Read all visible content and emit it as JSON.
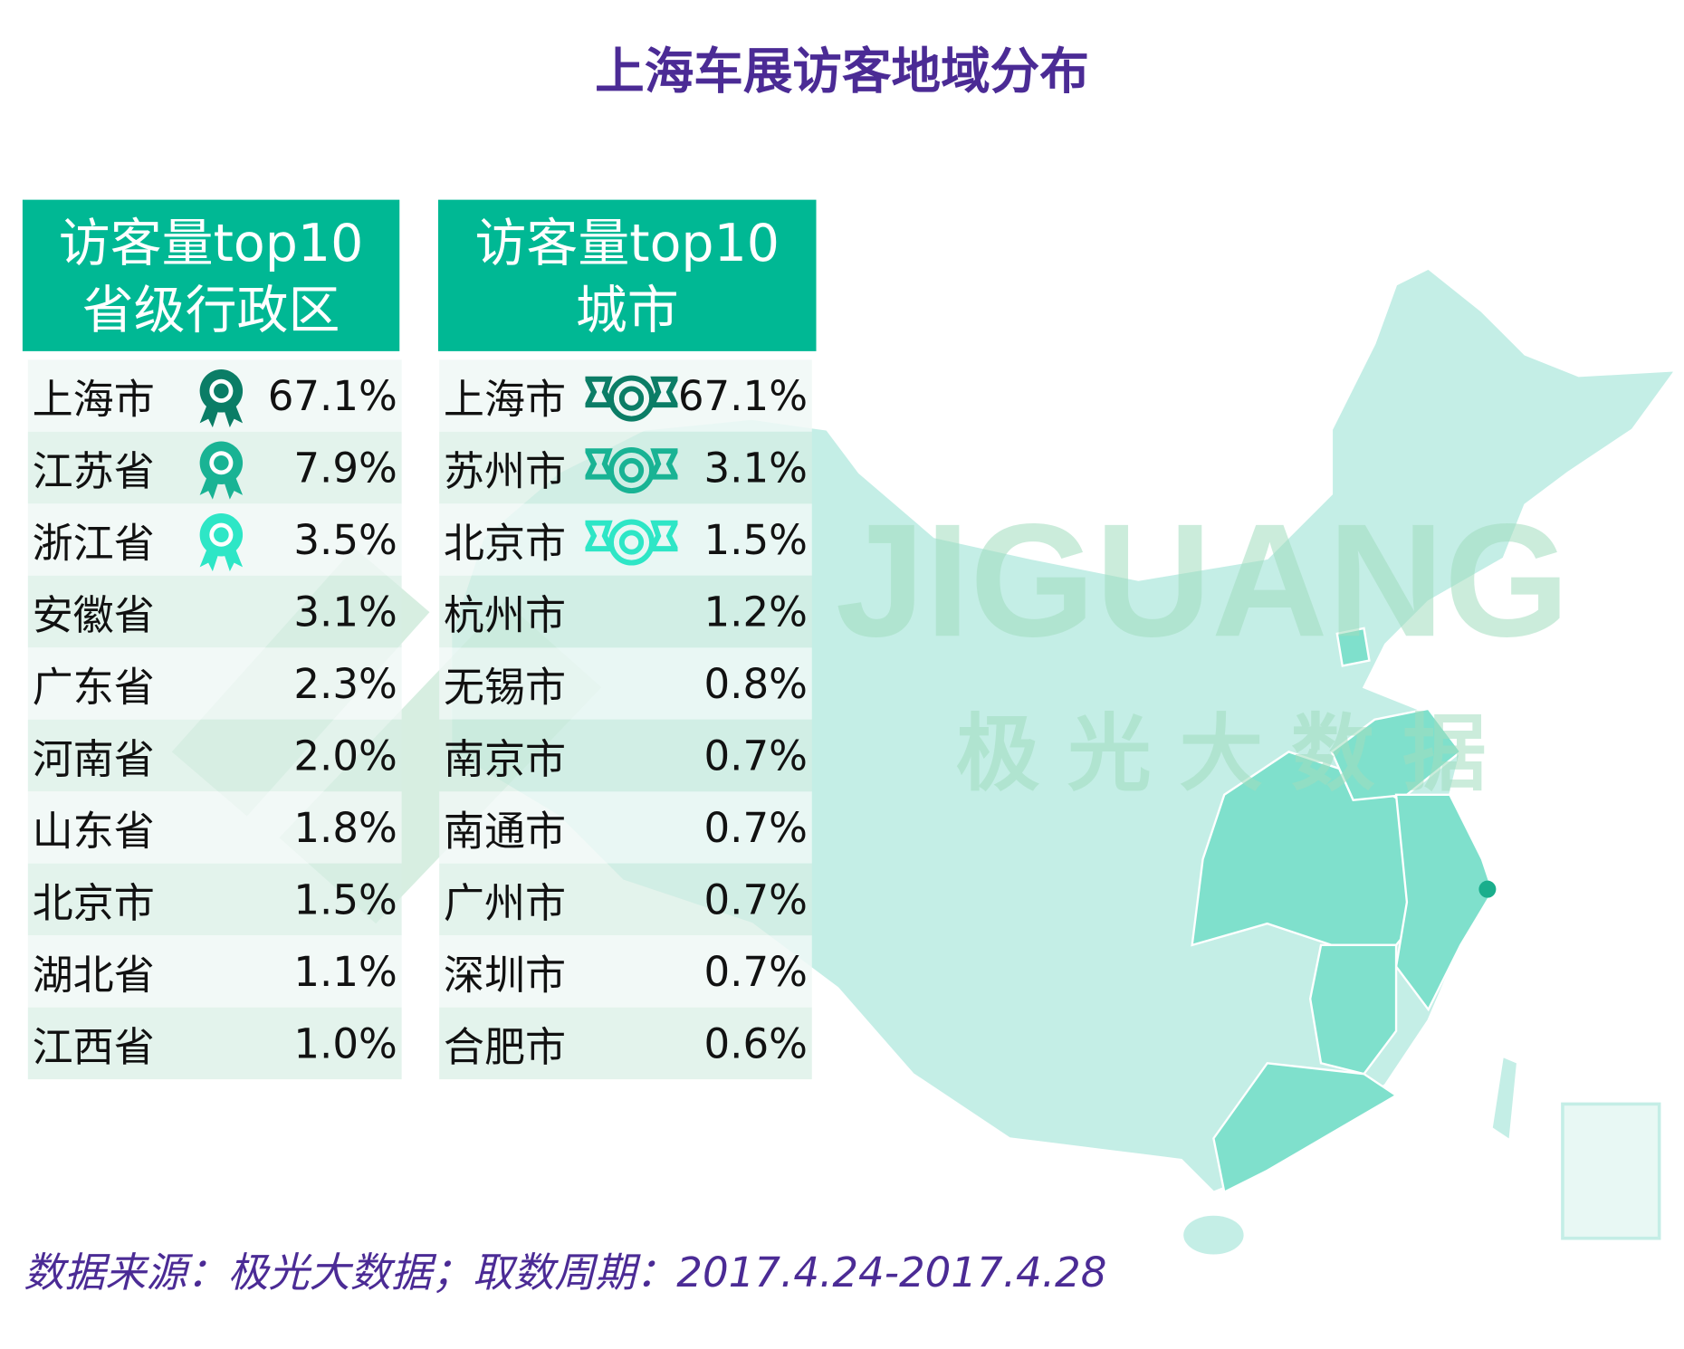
{
  "title": "上海车展访客地域分布",
  "watermark": {
    "latin": "JIGUANG",
    "chinese": "极光大数据"
  },
  "colors": {
    "accent": "#00b894",
    "title": "#4b2b95",
    "rank1": "#0b7d66",
    "rank2": "#19b394",
    "rank3": "#2ee6c6",
    "map_base": "#c4eee6",
    "map_highlight": "#7fe0cc"
  },
  "chart_data": [
    {
      "type": "table",
      "title": "访客量top10 省级行政区",
      "header_line1": "访客量top10",
      "header_line2": "省级行政区",
      "rows": [
        {
          "name": "上海市",
          "value": "67.1%",
          "icon": "medal-icon"
        },
        {
          "name": "江苏省",
          "value": "7.9%",
          "icon": "medal-icon"
        },
        {
          "name": "浙江省",
          "value": "3.5%",
          "icon": "medal-icon"
        },
        {
          "name": "安徽省",
          "value": "3.1%"
        },
        {
          "name": "广东省",
          "value": "2.3%"
        },
        {
          "name": "河南省",
          "value": "2.0%"
        },
        {
          "name": "山东省",
          "value": "1.8%"
        },
        {
          "name": "北京市",
          "value": "1.5%"
        },
        {
          "name": "湖北省",
          "value": "1.1%"
        },
        {
          "name": "江西省",
          "value": "1.0%"
        }
      ]
    },
    {
      "type": "table",
      "title": "访客量top10 城市",
      "header_line1": "访客量top10",
      "header_line2": "城市",
      "rows": [
        {
          "name": "上海市",
          "value": "67.1%",
          "icon": "ribbon-icon"
        },
        {
          "name": "苏州市",
          "value": "3.1%",
          "icon": "ribbon-icon"
        },
        {
          "name": "北京市",
          "value": "1.5%",
          "icon": "ribbon-icon"
        },
        {
          "name": "杭州市",
          "value": "1.2%"
        },
        {
          "name": "无锡市",
          "value": "0.8%"
        },
        {
          "name": "南京市",
          "value": "0.7%"
        },
        {
          "name": "南通市",
          "value": "0.7%"
        },
        {
          "name": "广州市",
          "value": "0.7%"
        },
        {
          "name": "深圳市",
          "value": "0.7%"
        },
        {
          "name": "合肥市",
          "value": "0.6%"
        }
      ]
    }
  ],
  "footer": "数据来源：极光大数据；取数周期：2017.4.24-2017.4.28"
}
